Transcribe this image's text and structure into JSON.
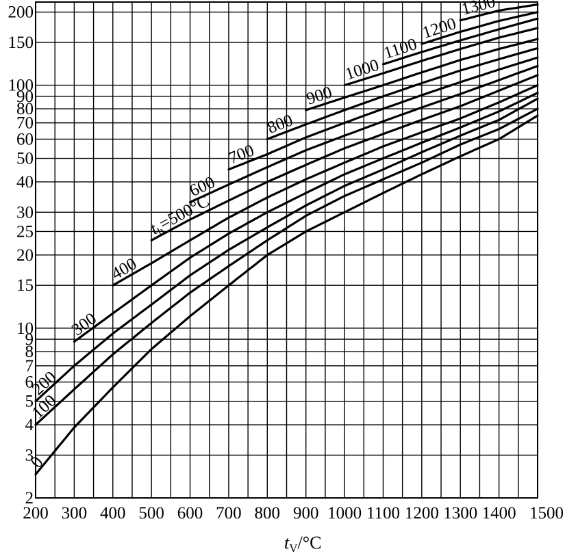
{
  "chart_data": {
    "type": "line",
    "title": "",
    "xlabel": {
      "symbol": "t",
      "subscript": "V",
      "unit": "/°C"
    },
    "ylabel": "",
    "xlim": [
      200,
      1500
    ],
    "ylim": [
      2,
      220
    ],
    "y_scale": "log",
    "grid": true,
    "legend": "none",
    "x_ticks": [
      "200",
      "300",
      "400",
      "500",
      "600",
      "700",
      "800",
      "900",
      "1000",
      "1100",
      "1200",
      "1300",
      "1400",
      "1500"
    ],
    "y_ticks": [
      "2",
      "3",
      "4",
      "5",
      "6",
      "7",
      "8",
      "9",
      "10",
      "15",
      "20",
      "25",
      "30",
      "40",
      "50",
      "60",
      "70",
      "80",
      "90",
      "100",
      "150",
      "200"
    ],
    "series_label_prefix": {
      "symbol": "t",
      "subscript": "b",
      "text": "=500°C"
    },
    "series": [
      {
        "label": "0",
        "x": [
          200,
          300,
          400,
          500,
          600,
          700,
          800,
          900,
          1000,
          1100,
          1200,
          1300,
          1400,
          1500
        ],
        "y": [
          2.5,
          3.9,
          5.7,
          8.2,
          11.2,
          15,
          20,
          25,
          30,
          36,
          43,
          51,
          60,
          75
        ]
      },
      {
        "label": "100",
        "x": [
          200,
          300,
          400,
          500,
          600,
          700,
          800,
          900,
          1000,
          1100,
          1200,
          1300,
          1400,
          1500
        ],
        "y": [
          4,
          5.6,
          7.8,
          10.5,
          14,
          18,
          23,
          29,
          35,
          41,
          48,
          57,
          66,
          80
        ]
      },
      {
        "label": "200",
        "x": [
          200,
          300,
          400,
          500,
          600,
          700,
          800,
          900,
          1000,
          1100,
          1200,
          1300,
          1400,
          1500
        ],
        "y": [
          5,
          7,
          9.5,
          12.5,
          16.5,
          21,
          26,
          32,
          38.5,
          45,
          53,
          62,
          72,
          88
        ]
      },
      {
        "label": "300",
        "x": [
          300,
          400,
          500,
          600,
          700,
          800,
          900,
          1000,
          1100,
          1200,
          1300,
          1400,
          1500
        ],
        "y": [
          8.8,
          11.5,
          15,
          19.5,
          24.5,
          30,
          36,
          43,
          50,
          58,
          67,
          78,
          93
        ]
      },
      {
        "label": "400",
        "x": [
          400,
          500,
          600,
          700,
          800,
          900,
          1000,
          1100,
          1200,
          1300,
          1400,
          1500
        ],
        "y": [
          15,
          18.5,
          23,
          28.5,
          34.5,
          41,
          48,
          56,
          64,
          73,
          85,
          100
        ]
      },
      {
        "label": "500",
        "x": [
          500,
          600,
          700,
          800,
          900,
          1000,
          1100,
          1200,
          1300,
          1400,
          1500
        ],
        "y": [
          23,
          28,
          33.5,
          40,
          47,
          55,
          63,
          72,
          82,
          95,
          110
        ]
      },
      {
        "label": "600",
        "x": [
          600,
          700,
          800,
          900,
          1000,
          1100,
          1200,
          1300,
          1400,
          1500
        ],
        "y": [
          33,
          39,
          46,
          54,
          62,
          71,
          81,
          92,
          105,
          120
        ]
      },
      {
        "label": "700",
        "x": [
          700,
          800,
          900,
          1000,
          1100,
          1200,
          1300,
          1400,
          1500
        ],
        "y": [
          45,
          52,
          61,
          70,
          80,
          91,
          103,
          116,
          130
        ]
      },
      {
        "label": "800",
        "x": [
          800,
          900,
          1000,
          1100,
          1200,
          1300,
          1400,
          1500
        ],
        "y": [
          60,
          69,
          79,
          90,
          102,
          115,
          128,
          142
        ]
      },
      {
        "label": "900",
        "x": [
          900,
          1000,
          1100,
          1200,
          1300,
          1400,
          1500
        ],
        "y": [
          79,
          89,
          100,
          113,
          127,
          141,
          155
        ]
      },
      {
        "label": "1000",
        "x": [
          1000,
          1100,
          1200,
          1300,
          1400,
          1500
        ],
        "y": [
          100,
          112,
          126,
          141,
          157,
          172
        ]
      },
      {
        "label": "1100",
        "x": [
          1100,
          1200,
          1300,
          1400,
          1500
        ],
        "y": [
          122,
          137,
          153,
          170,
          188
        ]
      },
      {
        "label": "1200",
        "x": [
          1200,
          1300,
          1400,
          1500
        ],
        "y": [
          148,
          166,
          184,
          200
        ]
      },
      {
        "label": "1300",
        "x": [
          1300,
          1400,
          1500
        ],
        "y": [
          185,
          203,
          215
        ]
      }
    ]
  }
}
